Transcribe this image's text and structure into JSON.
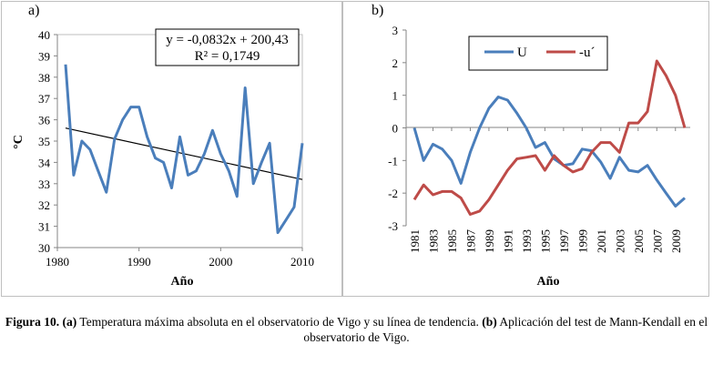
{
  "panels": {
    "a": {
      "label": "a)"
    },
    "b": {
      "label": "b)"
    }
  },
  "caption": {
    "fig_label": "Figura 10.",
    "a_label": "(a)",
    "a_text": " Temperatura máxima absoluta en el observatorio de Vigo y su línea de tendencia. ",
    "b_label": "(b)",
    "b_text": " Aplicación del test de Mann-Kendall en el observatorio de Vigo."
  },
  "chart_data": [
    {
      "type": "line",
      "xlabel": "Año",
      "ylabel": "°C",
      "xlim": [
        1980,
        2010
      ],
      "ylim": [
        30,
        40
      ],
      "xticks": [
        1980,
        1990,
        2000,
        2010
      ],
      "yticks": [
        30,
        31,
        32,
        33,
        34,
        35,
        36,
        37,
        38,
        39,
        40
      ],
      "grid": false,
      "series": [
        {
          "name": "",
          "color": "#4a7ebb",
          "x": [
            1981,
            1982,
            1983,
            1984,
            1985,
            1986,
            1987,
            1988,
            1989,
            1990,
            1991,
            1992,
            1993,
            1994,
            1995,
            1996,
            1997,
            1998,
            1999,
            2000,
            2001,
            2002,
            2003,
            2004,
            2005,
            2006,
            2007,
            2008,
            2009,
            2010
          ],
          "y": [
            38.6,
            33.4,
            35.0,
            34.6,
            33.6,
            32.6,
            35.1,
            36.0,
            36.6,
            36.6,
            35.2,
            34.2,
            34.0,
            32.8,
            35.2,
            33.4,
            33.6,
            34.4,
            35.5,
            34.4,
            33.6,
            32.4,
            37.5,
            33.0,
            34.0,
            34.9,
            30.7,
            31.3,
            31.9,
            34.9
          ]
        }
      ],
      "trendline": {
        "equation": "y = -0,0832x + 200,43",
        "r2": "R² = 0,1749",
        "slope": -0.0832,
        "intercept": 200.43,
        "x": [
          1981,
          2010
        ],
        "color": "#000000"
      }
    },
    {
      "type": "line",
      "xlabel": "Año",
      "ylabel": "",
      "xlim": [
        1981,
        2010
      ],
      "ylim": [
        -3,
        3
      ],
      "yticks": [
        -3,
        -2,
        -1,
        0,
        1,
        2,
        3
      ],
      "xticks": [
        "1981",
        "1983",
        "1985",
        "1987",
        "1989",
        "1991",
        "1993",
        "1995",
        "1997",
        "1999",
        "2001",
        "2003",
        "2005",
        "2007",
        "2009"
      ],
      "grid": false,
      "legend": {
        "position": "top-left"
      },
      "categories": [
        "1981",
        "1982",
        "1983",
        "1984",
        "1985",
        "1986",
        "1987",
        "1988",
        "1989",
        "1990",
        "1991",
        "1992",
        "1993",
        "1994",
        "1995",
        "1996",
        "1997",
        "1998",
        "1999",
        "2000",
        "2001",
        "2002",
        "2003",
        "2004",
        "2005",
        "2006",
        "2007",
        "2008",
        "2009",
        "2010"
      ],
      "series": [
        {
          "name": "U",
          "color": "#4a7ebb",
          "values": [
            0.0,
            -1.0,
            -0.5,
            -0.65,
            -1.0,
            -1.7,
            -0.75,
            0.0,
            0.6,
            0.95,
            0.85,
            0.45,
            0.0,
            -0.6,
            -0.45,
            -0.95,
            -1.15,
            -1.1,
            -0.65,
            -0.7,
            -1.05,
            -1.55,
            -0.9,
            -1.3,
            -1.35,
            -1.15,
            -1.6,
            -2.0,
            -2.4,
            -2.15
          ]
        },
        {
          "name": "-u´",
          "color": "#be4b48",
          "values": [
            -2.2,
            -1.75,
            -2.05,
            -1.95,
            -1.95,
            -2.15,
            -2.65,
            -2.55,
            -2.2,
            -1.75,
            -1.3,
            -0.95,
            -0.9,
            -0.85,
            -1.3,
            -0.85,
            -1.15,
            -1.35,
            -1.25,
            -0.75,
            -0.45,
            -0.45,
            -0.75,
            0.15,
            0.15,
            0.5,
            2.05,
            1.6,
            1.0,
            0.0
          ]
        }
      ]
    }
  ]
}
